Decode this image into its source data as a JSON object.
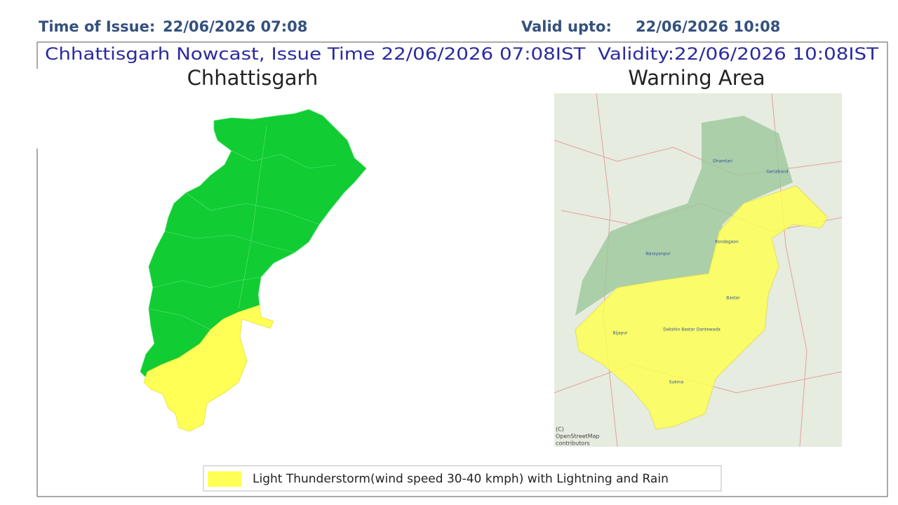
{
  "header": {
    "issue_label": "Time of Issue:",
    "issue_time": "22/06/2026 07:08",
    "valid_label": "Valid upto:",
    "valid_time": "22/06/2026 10:08"
  },
  "title": "Chhattisgarh Nowcast, Issue Time 22/06/2026 07:08IST  Validity:22/06/2026 10:08IST",
  "left_map": {
    "title": "Chhattisgarh"
  },
  "right_map": {
    "title": "Warning Area",
    "places": [
      "Dhamtari",
      "Gariaband",
      "Kondagaon",
      "Narayanpur",
      "Bastar",
      "Bijapur",
      "Dakshin Bastar Dantewada",
      "Sukma"
    ],
    "credit": [
      "(C)",
      "OpenStreetMap",
      "contributors"
    ]
  },
  "legend": {
    "label": "Light Thunderstorm(wind speed 30-40 kmph) with Lightning and Rain",
    "color": "#ffff55"
  }
}
